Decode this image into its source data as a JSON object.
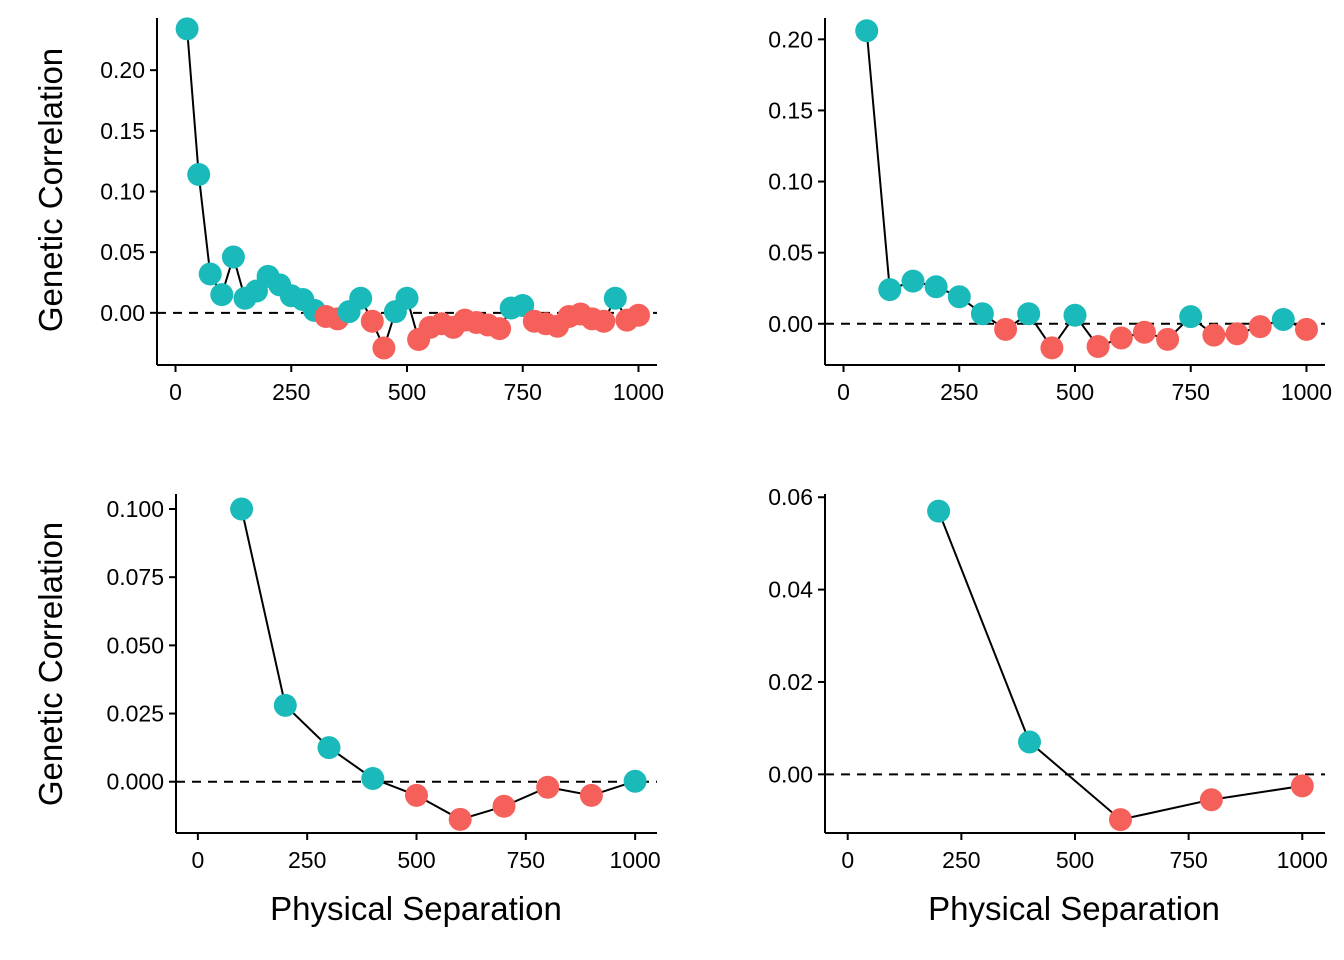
{
  "figure": {
    "colors": {
      "positive": "#1ABABA",
      "negative": "#F5605B",
      "line": "#000000"
    }
  },
  "chart_data": [
    {
      "type": "scatter",
      "xlabel": "",
      "ylabel": "Genetic Correlation",
      "xlim": [
        -40,
        1040
      ],
      "ylim": [
        -0.043,
        0.243
      ],
      "xticks": [
        0,
        250,
        500,
        750,
        1000
      ],
      "xtick_labels": [
        "0",
        "250",
        "500",
        "750",
        "1000"
      ],
      "yticks": [
        0,
        0.05,
        0.1,
        0.15,
        0.2
      ],
      "ytick_labels": [
        "0.00",
        "0.05",
        "0.10",
        "0.15",
        "0.20"
      ],
      "reference_line": 0,
      "x": [
        25,
        50,
        75,
        100,
        125,
        150,
        175,
        200,
        225,
        250,
        275,
        300,
        325,
        350,
        375,
        400,
        425,
        450,
        475,
        500,
        525,
        550,
        575,
        600,
        625,
        650,
        675,
        700,
        725,
        750,
        775,
        800,
        825,
        850,
        875,
        900,
        925,
        950,
        975,
        1000
      ],
      "y": [
        0.234,
        0.114,
        0.032,
        0.015,
        0.046,
        0.012,
        0.018,
        0.03,
        0.023,
        0.014,
        0.011,
        0.002,
        -0.003,
        -0.005,
        0.001,
        0.012,
        -0.007,
        -0.029,
        0.001,
        0.012,
        -0.022,
        -0.012,
        -0.009,
        -0.012,
        -0.006,
        -0.008,
        -0.01,
        -0.013,
        0.004,
        0.006,
        -0.007,
        -0.009,
        -0.011,
        -0.003,
        -0.001,
        -0.005,
        -0.007,
        0.012,
        -0.006,
        -0.002
      ]
    },
    {
      "type": "scatter",
      "xlabel": "",
      "ylabel": "",
      "xlim": [
        -40,
        1040
      ],
      "ylim": [
        -0.029,
        0.215
      ],
      "xticks": [
        0,
        250,
        500,
        750,
        1000
      ],
      "xtick_labels": [
        "0",
        "250",
        "500",
        "750",
        "1000"
      ],
      "yticks": [
        0,
        0.05,
        0.1,
        0.15,
        0.2
      ],
      "ytick_labels": [
        "0.00",
        "0.05",
        "0.10",
        "0.15",
        "0.20"
      ],
      "reference_line": 0,
      "x": [
        50,
        100,
        150,
        200,
        250,
        300,
        350,
        400,
        450,
        500,
        550,
        600,
        650,
        700,
        750,
        800,
        850,
        900,
        950,
        1000
      ],
      "y": [
        0.206,
        0.024,
        0.03,
        0.026,
        0.019,
        0.007,
        -0.004,
        0.007,
        -0.017,
        0.006,
        -0.016,
        -0.01,
        -0.006,
        -0.011,
        0.005,
        -0.008,
        -0.007,
        -0.002,
        0.003,
        -0.004
      ]
    },
    {
      "type": "scatter",
      "xlabel": "Physical Separation",
      "ylabel": "Genetic Correlation",
      "xlim": [
        -50,
        1050
      ],
      "ylim": [
        -0.0188,
        0.1055
      ],
      "xticks": [
        0,
        250,
        500,
        750,
        1000
      ],
      "xtick_labels": [
        "0",
        "250",
        "500",
        "750",
        "1000"
      ],
      "yticks": [
        0,
        0.025,
        0.05,
        0.075,
        0.1
      ],
      "ytick_labels": [
        "0.000",
        "0.025",
        "0.050",
        "0.075",
        "0.100"
      ],
      "reference_line": 0,
      "x": [
        100,
        200,
        300,
        400,
        500,
        600,
        700,
        800,
        900,
        1000
      ],
      "y": [
        0.1,
        0.028,
        0.0125,
        0.0012,
        -0.005,
        -0.0138,
        -0.009,
        -0.002,
        -0.005,
        0.0002
      ]
    },
    {
      "type": "scatter",
      "xlabel": "Physical Separation",
      "ylabel": "",
      "xlim": [
        -50,
        1050
      ],
      "ylim": [
        -0.0127,
        0.0607
      ],
      "xticks": [
        0,
        250,
        500,
        750,
        1000
      ],
      "xtick_labels": [
        "0",
        "250",
        "500",
        "750",
        "1000"
      ],
      "yticks": [
        0,
        0.02,
        0.04,
        0.06
      ],
      "ytick_labels": [
        "0.00",
        "0.02",
        "0.04",
        "0.06"
      ],
      "reference_line": 0,
      "x": [
        200,
        400,
        600,
        800,
        1000
      ],
      "y": [
        0.057,
        0.007,
        -0.0098,
        -0.0055,
        -0.0025
      ]
    }
  ]
}
